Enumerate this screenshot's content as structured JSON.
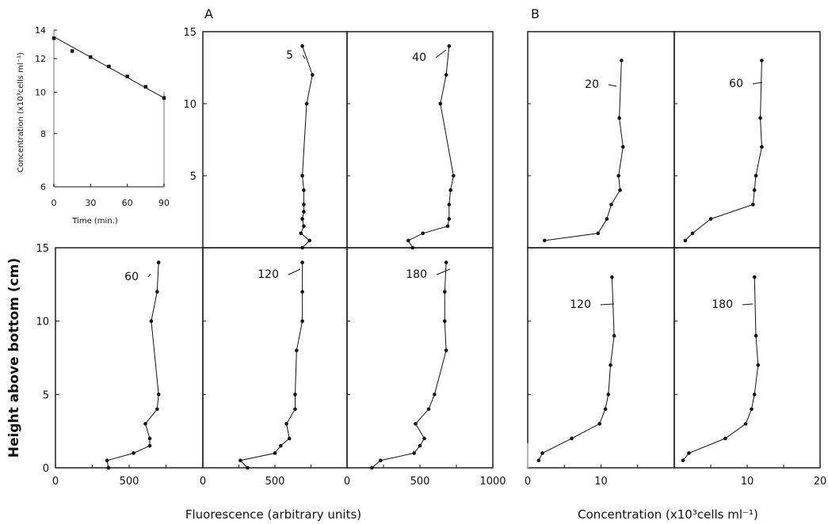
{
  "panel_labels": {
    "A": "A",
    "B": "B"
  },
  "axis_labels": {
    "height": "Height above bottom (cm)",
    "fluorescence": "Fluorescence (arbitrary units)",
    "concentration": "Concentration (x10³cells ml⁻¹)"
  },
  "chart_data": [
    {
      "id": "inset",
      "type": "scatter",
      "xlabel": "Time (min.)",
      "ylabel": "Concentration (x10³cells ml⁻¹)",
      "xlim": [
        0,
        90
      ],
      "ylim": [
        6,
        14
      ],
      "ylog": true,
      "xticks": [
        0,
        30,
        60,
        90
      ],
      "yticks": [
        6,
        8,
        10,
        12,
        14
      ],
      "x": [
        0,
        15,
        30,
        45,
        60,
        75,
        90
      ],
      "y": [
        13.4,
        12.5,
        12.1,
        11.5,
        10.9,
        10.3,
        9.7
      ],
      "fit_line": {
        "x": [
          0,
          90
        ],
        "y": [
          13.5,
          9.7
        ]
      }
    },
    {
      "id": "A-5",
      "type": "line",
      "annotation": "5",
      "xlim": [
        0,
        1000
      ],
      "ylim": [
        0,
        15
      ],
      "x": [
        690,
        760,
        720,
        690,
        700,
        700,
        700,
        690,
        700,
        680,
        740,
        690
      ],
      "y": [
        14,
        12,
        10,
        5,
        4,
        3,
        2.5,
        2,
        1.5,
        1,
        0.5,
        0
      ]
    },
    {
      "id": "A-40",
      "type": "line",
      "annotation": "40",
      "xlim": [
        0,
        1000
      ],
      "ylim": [
        0,
        15
      ],
      "x": [
        700,
        680,
        640,
        730,
        710,
        700,
        700,
        690,
        520,
        420,
        450
      ],
      "y": [
        14,
        12,
        10,
        5,
        4,
        3,
        2,
        1.5,
        1,
        0.5,
        0
      ]
    },
    {
      "id": "A-60",
      "type": "line",
      "annotation": "60",
      "xlim": [
        0,
        1000
      ],
      "ylim": [
        0,
        15
      ],
      "x": [
        700,
        690,
        650,
        700,
        690,
        610,
        640,
        640,
        530,
        350,
        360
      ],
      "y": [
        14,
        12,
        10,
        5,
        4,
        3,
        2,
        1.5,
        1,
        0.5,
        0
      ]
    },
    {
      "id": "A-120",
      "type": "line",
      "annotation": "120",
      "xlim": [
        0,
        1000
      ],
      "ylim": [
        0,
        15
      ],
      "x": [
        690,
        690,
        690,
        650,
        640,
        640,
        580,
        600,
        540,
        500,
        260,
        310
      ],
      "y": [
        14,
        12,
        10,
        8,
        5,
        4,
        3,
        2,
        1.5,
        1,
        0.5,
        0
      ]
    },
    {
      "id": "A-180",
      "type": "line",
      "annotation": "180",
      "xlim": [
        0,
        1000
      ],
      "ylim": [
        0,
        15
      ],
      "x": [
        680,
        670,
        670,
        680,
        600,
        560,
        470,
        530,
        500,
        460,
        230,
        170
      ],
      "y": [
        14,
        12,
        10,
        8,
        5,
        4,
        3,
        2,
        1.5,
        1,
        0.5,
        0
      ]
    },
    {
      "id": "B-20",
      "type": "line",
      "annotation": "20",
      "xlim": [
        0,
        20
      ],
      "ylim": [
        0,
        15
      ],
      "x": [
        12.8,
        12.5,
        13,
        12.4,
        12.6,
        11.4,
        10.8,
        9.6,
        2.3
      ],
      "y": [
        13,
        9,
        7,
        5,
        4,
        3,
        2,
        1,
        0.5
      ]
    },
    {
      "id": "B-60",
      "type": "line",
      "annotation": "60",
      "xlim": [
        0,
        20
      ],
      "ylim": [
        0,
        15
      ],
      "x": [
        12,
        11.8,
        12,
        11.2,
        11,
        10.8,
        5,
        2.5,
        1.5
      ],
      "y": [
        13,
        9,
        7,
        5,
        4,
        3,
        2,
        1,
        0.5
      ]
    },
    {
      "id": "B-120",
      "type": "line",
      "annotation": "120",
      "xlim": [
        0,
        20
      ],
      "ylim": [
        0,
        15
      ],
      "x": [
        11.5,
        11.8,
        11.3,
        11,
        10.6,
        9.8,
        6,
        2,
        1.5
      ],
      "y": [
        13,
        9,
        7,
        5,
        4,
        3,
        2,
        1,
        0.5
      ]
    },
    {
      "id": "B-180",
      "type": "line",
      "annotation": "180",
      "xlim": [
        0,
        20
      ],
      "ylim": [
        0,
        15
      ],
      "x": [
        11,
        11.2,
        11.5,
        11,
        10.6,
        9.8,
        7,
        2,
        1.2
      ],
      "y": [
        13,
        9,
        7,
        5,
        4,
        3,
        2,
        1,
        0.5
      ]
    }
  ]
}
